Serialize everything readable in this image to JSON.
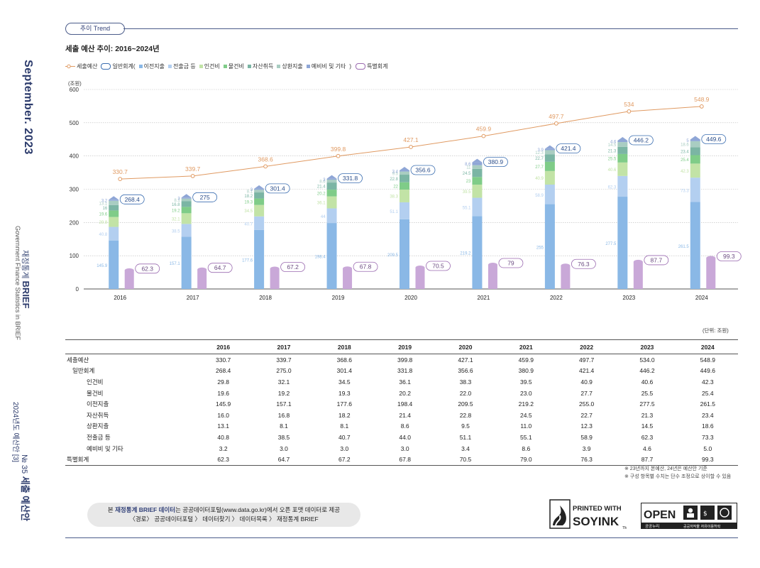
{
  "sidebar": {
    "month": "September. 2023",
    "brand_ko_prefix": "재정통계",
    "brand_ko_bold": "BRIEF",
    "brand_en": "Government Finance Statistics in BRIEF",
    "issue": "2024년도 예산안 [3]",
    "issue_no": "№ 35",
    "issue_title": "세출 예산안"
  },
  "header": {
    "tag": "추이 Trend",
    "title": "세출 예산 추이: 2016~2024년"
  },
  "legend": {
    "line": "세출예산",
    "general_prefix": "일반회계(",
    "general_suffix": ")",
    "special": "특별회계",
    "items": [
      {
        "label": "이전지출",
        "color": "#8ab8e6"
      },
      {
        "label": "전출금 등",
        "color": "#b3cff0"
      },
      {
        "label": "인건비",
        "color": "#c2e3a6"
      },
      {
        "label": "물건비",
        "color": "#7fcc88"
      },
      {
        "label": "자산취득",
        "color": "#7bb5a4"
      },
      {
        "label": "상환지출",
        "color": "#a9cdc2"
      },
      {
        "label": "예비비 및 기타",
        "color": "#8fa6d6"
      }
    ]
  },
  "chart_data": {
    "type": "bar",
    "ylabel": "(조원)",
    "ylim": [
      0,
      600
    ],
    "yticks": [
      0,
      100,
      200,
      300,
      400,
      500,
      600
    ],
    "categories": [
      "2016",
      "2017",
      "2018",
      "2019",
      "2020",
      "2021",
      "2022",
      "2023",
      "2024"
    ],
    "line_series": {
      "name": "세출예산",
      "color": "#e09a62",
      "values": [
        330.7,
        339.7,
        368.6,
        399.8,
        427.1,
        459.9,
        497.7,
        534.0,
        548.9
      ]
    },
    "general_totals": [
      268.4,
      275.0,
      301.4,
      331.8,
      356.6,
      380.9,
      421.4,
      446.2,
      449.6
    ],
    "stack_series": [
      {
        "name": "이전지출",
        "color": "#8ab8e6",
        "values": [
          145.9,
          157.1,
          177.6,
          198.4,
          209.5,
          219.2,
          255.0,
          277.5,
          261.5
        ]
      },
      {
        "name": "전출금 등",
        "color": "#b3cff0",
        "values": [
          40.8,
          38.5,
          40.7,
          44.0,
          51.1,
          55.1,
          58.9,
          62.3,
          73.3
        ]
      },
      {
        "name": "인건비",
        "color": "#c2e3a6",
        "values": [
          29.8,
          32.1,
          34.5,
          36.1,
          38.3,
          39.5,
          40.9,
          40.6,
          42.3
        ]
      },
      {
        "name": "물건비",
        "color": "#7fcc88",
        "values": [
          19.6,
          19.2,
          19.3,
          20.2,
          22.0,
          23.0,
          27.7,
          25.5,
          25.4
        ]
      },
      {
        "name": "자산취득",
        "color": "#7bb5a4",
        "values": [
          16.0,
          16.8,
          18.2,
          21.4,
          22.8,
          24.5,
          22.7,
          21.3,
          23.4
        ]
      },
      {
        "name": "상환지출",
        "color": "#a9cdc2",
        "values": [
          13.1,
          8.1,
          8.1,
          8.6,
          9.5,
          11.0,
          12.3,
          14.5,
          18.6
        ]
      },
      {
        "name": "예비비 및 기타",
        "color": "#8fa6d6",
        "values": [
          3.2,
          3.0,
          3.0,
          3.0,
          3.4,
          8.6,
          3.9,
          4.6,
          5.0
        ]
      }
    ],
    "special_series": {
      "name": "특별회계",
      "color": "#c9a8d8",
      "values": [
        62.3,
        64.7,
        67.2,
        67.8,
        70.5,
        79.0,
        76.3,
        87.7,
        99.3
      ]
    }
  },
  "table": {
    "unit": "(단위: 조원)",
    "headers": [
      "",
      "2016",
      "2017",
      "2018",
      "2019",
      "2020",
      "2021",
      "2022",
      "2023",
      "2024"
    ],
    "rows": [
      {
        "label": "세출예산",
        "indent": 0,
        "values": [
          "330.7",
          "339.7",
          "368.6",
          "399.8",
          "427.1",
          "459.9",
          "497.7",
          "534.0",
          "548.9"
        ]
      },
      {
        "label": "일반회계",
        "indent": 1,
        "values": [
          "268.4",
          "275.0",
          "301.4",
          "331.8",
          "356.6",
          "380.9",
          "421.4",
          "446.2",
          "449.6"
        ]
      },
      {
        "label": "인건비",
        "indent": 2,
        "values": [
          "29.8",
          "32.1",
          "34.5",
          "36.1",
          "38.3",
          "39.5",
          "40.9",
          "40.6",
          "42.3"
        ]
      },
      {
        "label": "물건비",
        "indent": 2,
        "values": [
          "19.6",
          "19.2",
          "19.3",
          "20.2",
          "22.0",
          "23.0",
          "27.7",
          "25.5",
          "25.4"
        ]
      },
      {
        "label": "이전지출",
        "indent": 2,
        "values": [
          "145.9",
          "157.1",
          "177.6",
          "198.4",
          "209.5",
          "219.2",
          "255.0",
          "277.5",
          "261.5"
        ]
      },
      {
        "label": "자산취득",
        "indent": 2,
        "values": [
          "16.0",
          "16.8",
          "18.2",
          "21.4",
          "22.8",
          "24.5",
          "22.7",
          "21.3",
          "23.4"
        ]
      },
      {
        "label": "상환지출",
        "indent": 2,
        "values": [
          "13.1",
          "8.1",
          "8.1",
          "8.6",
          "9.5",
          "11.0",
          "12.3",
          "14.5",
          "18.6"
        ]
      },
      {
        "label": "전출금 등",
        "indent": 2,
        "values": [
          "40.8",
          "38.5",
          "40.7",
          "44.0",
          "51.1",
          "55.1",
          "58.9",
          "62.3",
          "73.3"
        ]
      },
      {
        "label": "예비비 및 기타",
        "indent": 2,
        "values": [
          "3.2",
          "3.0",
          "3.0",
          "3.0",
          "3.4",
          "8.6",
          "3.9",
          "4.6",
          "5.0"
        ]
      },
      {
        "label": "특별회계",
        "indent": 0,
        "values": [
          "62.3",
          "64.7",
          "67.2",
          "67.8",
          "70.5",
          "79.0",
          "76.3",
          "87.7",
          "99.3"
        ]
      }
    ]
  },
  "notes": [
    "※ 23년까지 본예산, 24년은 예산안 기준",
    "※ 구성 항목별 수치는 단수 조정으로 상이할 수 있음"
  ],
  "banner": {
    "pre": "본 ",
    "highlight": "재정통계 BRIEF 데이터",
    "post": "는 공공데이터포털(www.data.go.kr)에서 오픈 포맷 데이터로 제공",
    "line2": "〈경로〉 공공데이터포털 〉 데이터찾기 〉 데이터목록 〉 재정통계 BRIEF"
  },
  "logos": {
    "soy_line1": "PRINTED WITH",
    "soy_line2": "SOYINK",
    "soy_tm": "TM",
    "open_word": "OPEN",
    "open_sub": "공공누리",
    "open_desc": "공공저작물 자유이용허락"
  }
}
